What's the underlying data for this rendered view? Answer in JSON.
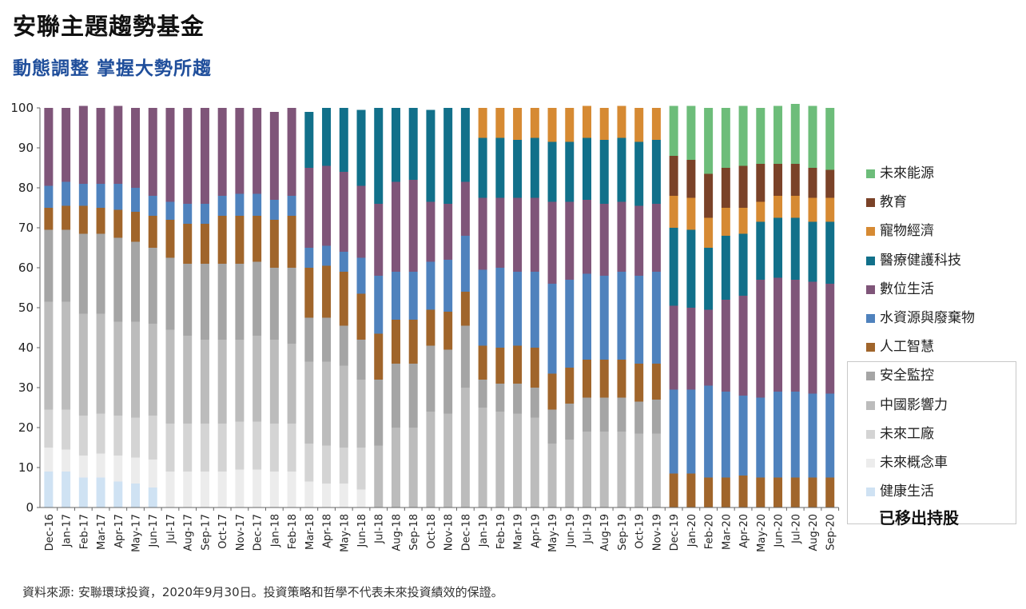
{
  "title": "安聯主題趨勢基金",
  "subtitle": "動態調整  掌握大勢所趨",
  "source": "資料來源: 安聯環球投資，2020年9月30日。投資策略和哲學不代表未來投資績效的保證。",
  "legend_note": "已移出持股",
  "colors": {
    "未來能源": "#6dbd7a",
    "教育": "#7a4228",
    "寵物經濟": "#d68a33",
    "醫療健護科技": "#11708a",
    "數位生活": "#7f5579",
    "水資源與廢棄物": "#4f82bd",
    "人工智慧": "#a0652b",
    "安全監控": "#a5a5a5",
    "中國影響力": "#bcbcbc",
    "未來工廠": "#d4d4d4",
    "未來概念車": "#ececec",
    "健康生活": "#cfe2f3"
  },
  "chart_data": {
    "type": "bar",
    "stacked": true,
    "ylim": [
      0,
      100
    ],
    "yticks": [
      0,
      10,
      20,
      30,
      40,
      50,
      60,
      70,
      80,
      90,
      100
    ],
    "grid": false,
    "legend_position": "right",
    "categories": [
      "Dec-16",
      "Jan-17",
      "Feb-17",
      "Mar-17",
      "Apr-17",
      "May-17",
      "Jun-17",
      "Jul-17",
      "Aug-17",
      "Sep-17",
      "Oct-17",
      "Nov-17",
      "Dec-17",
      "Jan-18",
      "Feb-18",
      "Mar-18",
      "Apr-18",
      "May-18",
      "Jun-18",
      "Jul-18",
      "Aug-18",
      "Sep-18",
      "Oct-18",
      "Nov-18",
      "Dec-18",
      "Jan-19",
      "Feb-19",
      "Mar-19",
      "Apr-19",
      "May-19",
      "Jun-19",
      "Jul-19",
      "Aug-19",
      "Sep-19",
      "Oct-19",
      "Nov-19",
      "Dec-19",
      "Jan-20",
      "Feb-20",
      "Mar-20",
      "Apr-20",
      "May-20",
      "Jun-20",
      "Jul-20",
      "Aug-20",
      "Sep-20"
    ],
    "series": [
      {
        "name": "健康生活",
        "values": [
          9,
          9,
          7.5,
          7.5,
          6.5,
          6,
          5,
          0,
          0,
          0,
          0,
          0,
          0,
          0,
          0,
          0,
          0,
          0,
          0,
          0,
          0,
          0,
          0,
          0,
          0,
          0,
          0,
          0,
          0,
          0,
          0,
          0,
          0,
          0,
          0,
          0,
          0,
          0,
          0,
          0,
          0,
          0,
          0,
          0,
          0,
          0
        ]
      },
      {
        "name": "未來概念車",
        "values": [
          6,
          5.5,
          5.5,
          6,
          6.5,
          6.5,
          7,
          9,
          9,
          9,
          9,
          9.5,
          9.5,
          9,
          9,
          6.5,
          6,
          6,
          4.5,
          0,
          0,
          0,
          0,
          0,
          0,
          0,
          0,
          0,
          0,
          0,
          0,
          0,
          0,
          0,
          0,
          0,
          0,
          0,
          0,
          0,
          0,
          0,
          0,
          0,
          0,
          0
        ]
      },
      {
        "name": "未來工廠",
        "values": [
          9.5,
          10,
          10,
          10,
          10,
          10,
          11,
          12,
          12,
          12,
          12,
          12,
          12,
          12,
          12,
          9.5,
          9.5,
          9,
          10.5,
          0,
          0,
          0,
          0,
          0,
          0,
          0,
          0,
          0,
          0,
          0,
          0,
          0,
          0,
          0,
          0,
          0,
          0,
          0,
          0,
          0,
          0,
          0,
          0,
          0,
          0,
          0
        ]
      },
      {
        "name": "中國影響力",
        "values": [
          27,
          27,
          25.5,
          25,
          23.5,
          24,
          23,
          23.5,
          22,
          21,
          21,
          20.5,
          21.5,
          21,
          20,
          20.5,
          21,
          20.5,
          17,
          15.5,
          20,
          20,
          24,
          23.5,
          30,
          25,
          24,
          23.5,
          22.5,
          16,
          17,
          19,
          19,
          19,
          18.5,
          18.5,
          0,
          0,
          0,
          0,
          0,
          0,
          0,
          0,
          0,
          0
        ]
      },
      {
        "name": "安全監控",
        "values": [
          18,
          18,
          20,
          20,
          21,
          20,
          19,
          18,
          18,
          19,
          19,
          19,
          18.5,
          18,
          19,
          11,
          11,
          10,
          10,
          16.5,
          16,
          16,
          16.5,
          16,
          15.5,
          7,
          7,
          7.5,
          7.5,
          8.5,
          9,
          8.5,
          8.5,
          8.5,
          8,
          8.5,
          0,
          0,
          0,
          0,
          0,
          0,
          0,
          0,
          0,
          0
        ]
      },
      {
        "name": "人工智慧",
        "values": [
          5.5,
          6,
          7,
          6.5,
          7,
          7.5,
          8,
          9.5,
          10,
          10,
          12,
          12,
          11.5,
          12,
          13,
          12.5,
          13,
          13.5,
          11.5,
          11.5,
          11,
          11,
          9,
          9.5,
          8.5,
          8.5,
          9,
          9.5,
          10,
          9,
          9,
          9.5,
          9.5,
          9.5,
          9.5,
          9,
          8.5,
          8.5,
          7.5,
          7.5,
          8,
          7.5,
          7.5,
          7.5,
          7.5,
          7.5
        ]
      },
      {
        "name": "水資源與廢棄物",
        "values": [
          5.5,
          6,
          5.5,
          6,
          6.5,
          6,
          5,
          4.5,
          5,
          5,
          5,
          5.5,
          5.5,
          5,
          5,
          5,
          5,
          5,
          9,
          14.5,
          12,
          12,
          12,
          13,
          14,
          19,
          20,
          18.5,
          19,
          22.5,
          22,
          21.5,
          21,
          22,
          22,
          23,
          21,
          21,
          23,
          21.5,
          20,
          20,
          21.5,
          21.5,
          21,
          21
        ]
      },
      {
        "name": "數位生活",
        "values": [
          19.5,
          18.5,
          19.5,
          19,
          19.5,
          20,
          22,
          23.5,
          24,
          24,
          22,
          21.5,
          21.5,
          22,
          22,
          20,
          20,
          20,
          18,
          18,
          22.5,
          23,
          15,
          14,
          13.5,
          18,
          17.5,
          18.5,
          18.5,
          20.5,
          19.5,
          18.5,
          18,
          17.5,
          17.5,
          17,
          21,
          20.5,
          19,
          23,
          25,
          29.5,
          28.5,
          28,
          28,
          27.5
        ]
      },
      {
        "name": "醫療健護科技",
        "values": [
          0,
          0,
          0,
          0,
          0,
          0,
          0,
          0,
          0,
          0,
          0,
          0,
          0,
          0,
          0,
          14,
          14.5,
          16,
          19,
          24,
          18.5,
          18,
          23,
          24,
          18.5,
          15,
          15,
          14.5,
          15,
          15,
          15,
          15.5,
          16,
          16,
          16,
          16,
          19.5,
          19.5,
          15.5,
          16,
          15.5,
          14.5,
          15,
          15.5,
          15,
          15.5
        ]
      },
      {
        "name": "寵物經濟",
        "values": [
          0,
          0,
          0,
          0,
          0,
          0,
          0,
          0,
          0,
          0,
          0,
          0,
          0,
          0,
          0,
          0,
          0,
          0,
          0,
          0,
          0,
          0,
          0,
          0,
          0,
          7.5,
          7.5,
          8,
          7.5,
          8.5,
          8.5,
          8,
          8,
          8,
          8.5,
          8,
          8,
          8,
          7.5,
          7,
          6.5,
          5,
          5.5,
          5.5,
          6,
          6
        ]
      },
      {
        "name": "教育",
        "values": [
          0,
          0,
          0,
          0,
          0,
          0,
          0,
          0,
          0,
          0,
          0,
          0,
          0,
          0,
          0,
          0,
          0,
          0,
          0,
          0,
          0,
          0,
          0,
          0,
          0,
          0,
          0,
          0,
          0,
          0,
          0,
          0,
          0,
          0,
          0,
          0,
          10,
          9.5,
          11,
          10,
          10.5,
          9.5,
          8,
          8,
          7.5,
          7
        ]
      },
      {
        "name": "未來能源",
        "values": [
          0,
          0,
          0,
          0,
          0,
          0,
          0,
          0,
          0,
          0,
          0,
          0,
          0,
          0,
          0,
          0,
          0,
          0,
          0,
          0,
          0,
          0,
          0,
          0,
          0,
          0,
          0,
          0,
          0,
          0,
          0,
          0,
          0,
          0,
          0,
          0,
          12.5,
          13.5,
          16.5,
          15,
          15,
          14,
          14.5,
          15,
          15.5,
          15.5
        ]
      }
    ]
  },
  "legend": [
    {
      "label": "未來能源"
    },
    {
      "label": "教育"
    },
    {
      "label": "寵物經濟"
    },
    {
      "label": "醫療健護科技"
    },
    {
      "label": "數位生活"
    },
    {
      "label": "水資源與廢棄物"
    },
    {
      "label": "人工智慧"
    },
    {
      "label": "安全監控"
    },
    {
      "label": "中國影響力"
    },
    {
      "label": "未來工廠"
    },
    {
      "label": "未來概念車"
    },
    {
      "label": "健康生活"
    }
  ]
}
